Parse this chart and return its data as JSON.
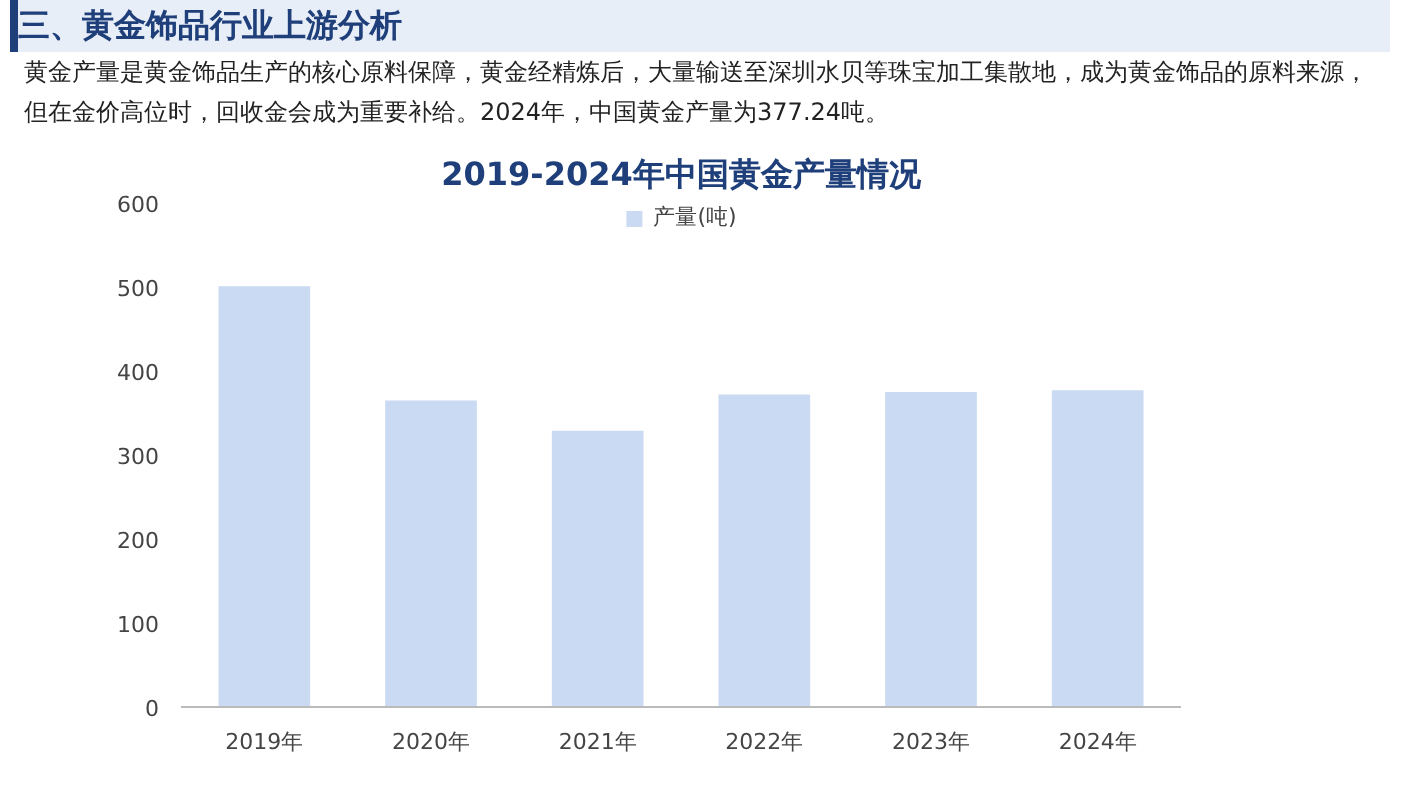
{
  "chart_data": {
    "type": "bar",
    "title": "2019-2024年中国黄金产量情况",
    "annotations": [
      "三、黄金饰品行业上游分析",
      "黄金产量是黄金饰品生产的核心原料保障，黄金经精炼后，大量输送至深圳水贝等珠宝加工集散地，成为黄金饰品的原料来源，但在金价高位时，回收金会成为重要补给。2024年，中国黄金产量为377.24吨。"
    ],
    "categories": [
      "2019年",
      "2020年",
      "2021年",
      "2022年",
      "2023年",
      "2024年"
    ],
    "series": [
      {
        "name": "产量(吨)",
        "color": "#c9daf2",
        "values": [
          501,
          365,
          329,
          372,
          375,
          377
        ]
      }
    ],
    "ylim": [
      0,
      600
    ],
    "yticks": [
      0,
      100,
      200,
      300,
      400,
      500,
      600
    ],
    "grid": false,
    "legend": "top"
  }
}
